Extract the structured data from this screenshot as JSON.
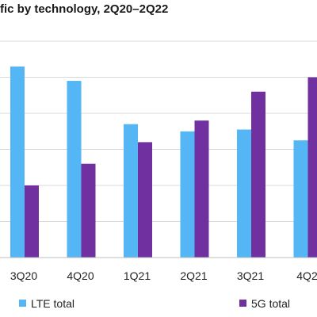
{
  "chart_data": {
    "type": "bar",
    "title": "fic by technology, 2Q20–2Q22",
    "categories": [
      "3Q20",
      "4Q20",
      "1Q21",
      "2Q21",
      "3Q21",
      "4Q2"
    ],
    "series": [
      {
        "name": "LTE total",
        "color": "#55b6f5",
        "values": [
          5.3,
          4.9,
          3.7,
          3.5,
          3.55,
          3.25
        ]
      },
      {
        "name": "5G total",
        "color": "#7030a0",
        "values": [
          2.0,
          2.6,
          3.2,
          3.8,
          4.6,
          5.0
        ]
      }
    ],
    "ylim": [
      0,
      6
    ],
    "grid": true,
    "legend_position": "bottom"
  }
}
